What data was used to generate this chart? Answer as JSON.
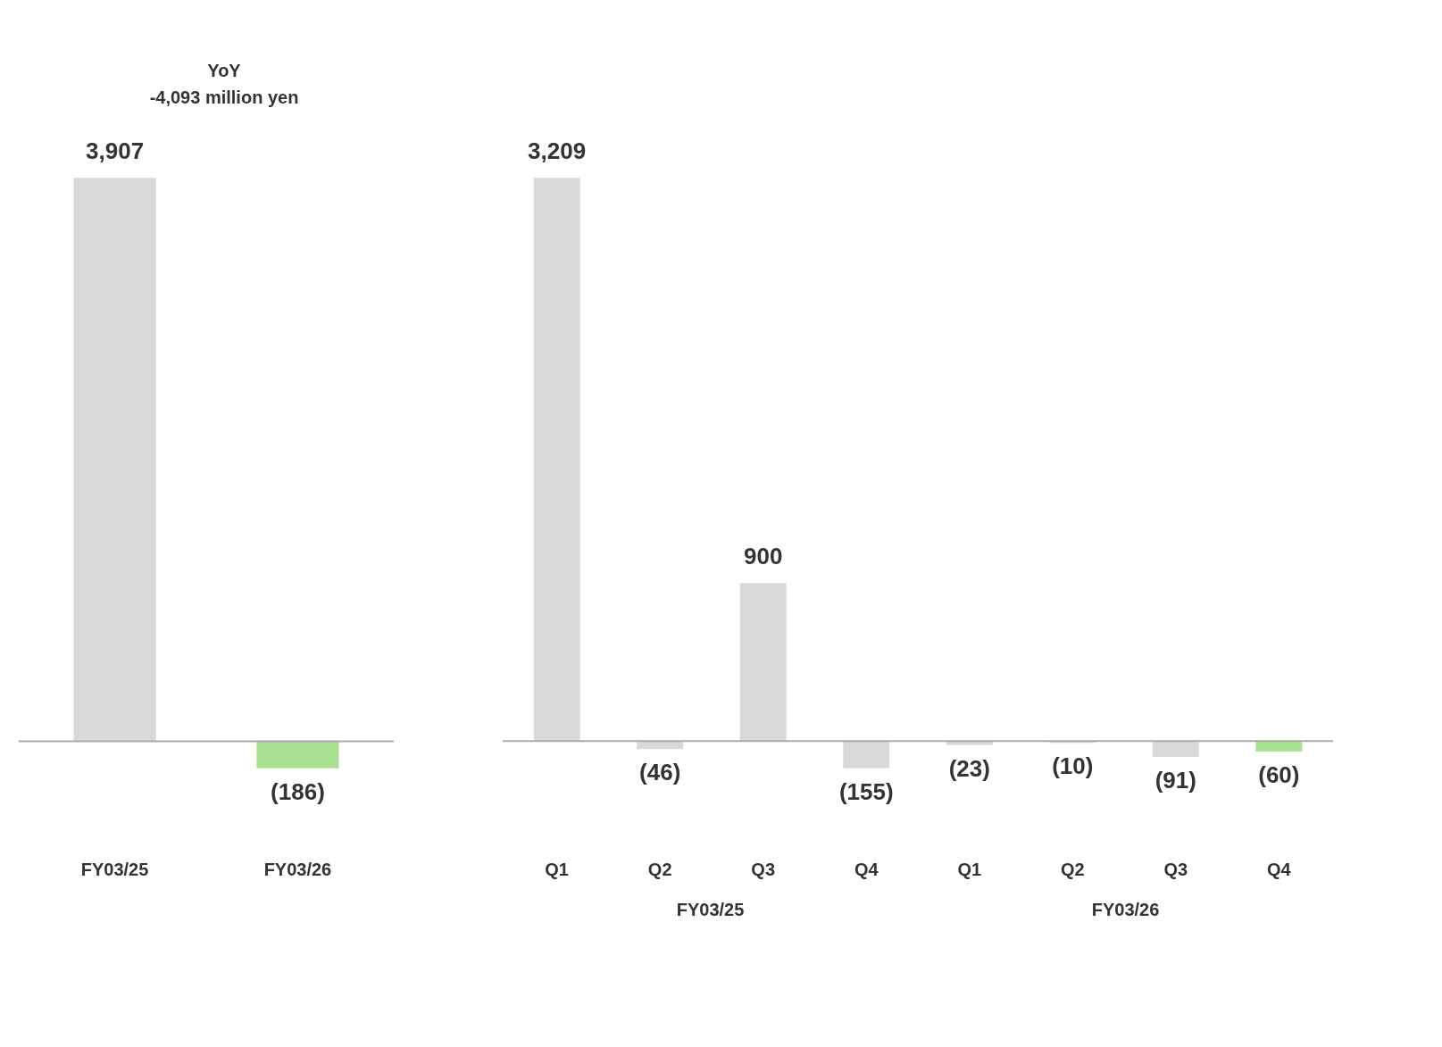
{
  "chart_data": [
    {
      "type": "bar",
      "categories": [
        "FY03/25",
        "FY03/26"
      ],
      "values": [
        3907,
        -186
      ],
      "colors": [
        "#d9d9d9",
        "#a9e192"
      ],
      "value_labels": [
        "3,907",
        "(186)"
      ],
      "annotations": [
        "YoY",
        "-4,093 million yen"
      ],
      "grid": false
    },
    {
      "type": "bar",
      "categories": [
        "Q1",
        "Q2",
        "Q3",
        "Q4",
        "Q1",
        "Q2",
        "Q3",
        "Q4"
      ],
      "values": [
        3209,
        -46,
        900,
        -155,
        -23,
        -10,
        -91,
        -60
      ],
      "colors": [
        "#d9d9d9",
        "#d9d9d9",
        "#d9d9d9",
        "#d9d9d9",
        "#d9d9d9",
        "#d9d9d9",
        "#d9d9d9",
        "#a9e192"
      ],
      "value_labels": [
        "3,209",
        "(46)",
        "900",
        "(155)",
        "(23)",
        "(10)",
        "(91)",
        "(60)"
      ],
      "annotations": [
        "FY03/25",
        "FY03/26"
      ],
      "grid": false
    }
  ]
}
